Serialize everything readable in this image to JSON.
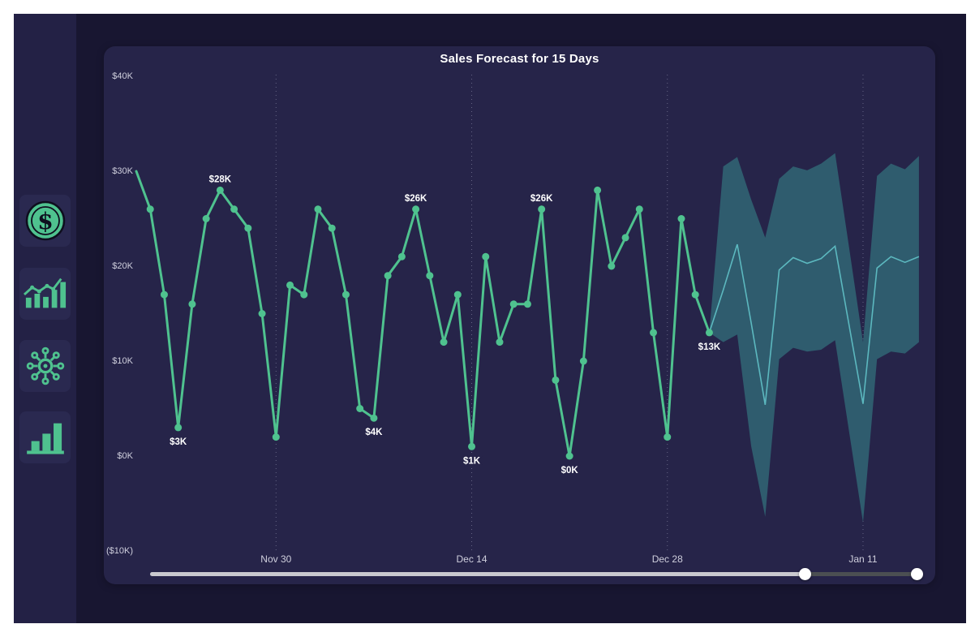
{
  "app": {
    "colors": {
      "page_bg": "#ffffff",
      "app_bg": "#181631",
      "sidebar_bg": "#232145",
      "tile_bg": "#2a2950",
      "panel_bg": "#262449",
      "accent_green": "#4fc28f",
      "forecast_band": "#2f5c6e",
      "forecast_line": "#5cb8bf",
      "axis_text": "#cfcfdd"
    }
  },
  "sidebar": {
    "items": [
      {
        "id": "sales",
        "icon": "dollar-coin-icon"
      },
      {
        "id": "trends",
        "icon": "trend-bars-icon"
      },
      {
        "id": "network",
        "icon": "network-hub-icon"
      },
      {
        "id": "bars",
        "icon": "bar-chart-icon"
      }
    ]
  },
  "chart_data": {
    "type": "line",
    "title": "Sales Forecast for 15 Days",
    "legend": "none",
    "x_axis": {
      "tick_labels": [
        "Nov 30",
        "Dec 14",
        "Dec 28",
        "Jan 11"
      ],
      "tick_day_index": [
        10,
        24,
        38,
        52
      ],
      "total_days": 57,
      "gridlines": "dotted-vertical"
    },
    "y_axis": {
      "tick_labels": [
        "$40K",
        "$30K",
        "$20K",
        "$10K",
        "$0K",
        "($10K)"
      ],
      "tick_values": [
        40,
        30,
        20,
        10,
        0,
        -10
      ],
      "ylim": [
        -10,
        40
      ],
      "unit": "K USD"
    },
    "series": [
      {
        "name": "actual",
        "color": "#4fc28f",
        "marker": "circle",
        "values_k": [
          30,
          26,
          17,
          3,
          16,
          25,
          28,
          26,
          24,
          15,
          2,
          18,
          17,
          26,
          24,
          17,
          5,
          4,
          19,
          21,
          26,
          19,
          12,
          17,
          1,
          21,
          12,
          16,
          16,
          26,
          8,
          0,
          10,
          28,
          20,
          23,
          26,
          13,
          2,
          25,
          17,
          13
        ]
      },
      {
        "name": "forecast",
        "color": "#5cb8bf",
        "start_day_index": 42,
        "values_k": [
          17.5,
          22.3,
          14,
          5.4,
          19.6,
          20.9,
          20.3,
          20.8,
          22.1,
          13.8,
          5.5,
          19.8,
          21,
          20.4,
          21
        ]
      }
    ],
    "forecast_band": {
      "color": "#2f5c6e",
      "upper_k": [
        30.5,
        31.5,
        27,
        23,
        29.2,
        30.5,
        30.1,
        30.8,
        31.9,
        22,
        12,
        29.5,
        30.8,
        30.2,
        31.6
      ],
      "lower_k": [
        12,
        12.8,
        1,
        -6.4,
        10.2,
        11.4,
        11,
        11.2,
        12.2,
        2.6,
        -7,
        10.2,
        11,
        10.8,
        12
      ]
    },
    "data_labels": [
      {
        "series": "actual",
        "index": 3,
        "text": "$3K",
        "placement": "below"
      },
      {
        "series": "actual",
        "index": 6,
        "text": "$28K",
        "placement": "above"
      },
      {
        "series": "actual",
        "index": 17,
        "text": "$4K",
        "placement": "below"
      },
      {
        "series": "actual",
        "index": 20,
        "text": "$26K",
        "placement": "above"
      },
      {
        "series": "actual",
        "index": 24,
        "text": "$1K",
        "placement": "below"
      },
      {
        "series": "actual",
        "index": 29,
        "text": "$26K",
        "placement": "above"
      },
      {
        "series": "actual",
        "index": 31,
        "text": "$0K",
        "placement": "below"
      },
      {
        "series": "actual",
        "index": 41,
        "text": "$13K",
        "placement": "below"
      }
    ]
  },
  "slider": {
    "handle_fractions": [
      0.855,
      1.0
    ],
    "track_color": "#c9c9cf",
    "range_color": "#4b4f52",
    "handle_color": "#ffffff"
  }
}
